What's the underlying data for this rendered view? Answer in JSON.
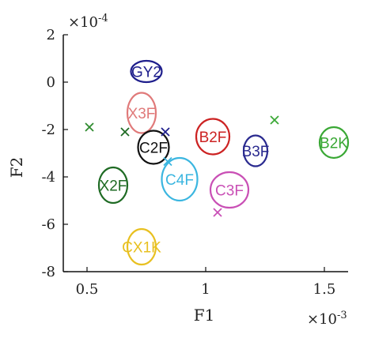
{
  "chart_data": {
    "type": "scatter",
    "title": "",
    "xlabel": "F1",
    "ylabel": "F2",
    "x_multiplier": "×10-3",
    "y_multiplier": "×10-4",
    "xlim": [
      0.4,
      1.6
    ],
    "ylim": [
      -8,
      2
    ],
    "x_ticks": [
      {
        "value": 0.5,
        "label": "0.5"
      },
      {
        "value": 1.0,
        "label": "1"
      },
      {
        "value": 1.5,
        "label": "1.5"
      }
    ],
    "y_ticks": [
      {
        "value": 2,
        "label": "2"
      },
      {
        "value": 0,
        "label": "0"
      },
      {
        "value": -2,
        "label": "-2"
      },
      {
        "value": -4,
        "label": "-4"
      },
      {
        "value": -6,
        "label": "-6"
      },
      {
        "value": -8,
        "label": "-8"
      }
    ],
    "grid": false,
    "clusters": [
      {
        "label": "GY2",
        "x": 0.75,
        "y": 0.45,
        "rx": 0.065,
        "ry": 0.45,
        "color": "#1e1e8c"
      },
      {
        "label": "X3F",
        "x": 0.73,
        "y": -1.3,
        "rx": 0.06,
        "ry": 0.85,
        "color": "#e07a7a"
      },
      {
        "label": "C2F",
        "x": 0.78,
        "y": -2.75,
        "rx": 0.065,
        "ry": 0.7,
        "color": "#111111"
      },
      {
        "label": "B2F",
        "x": 1.03,
        "y": -2.3,
        "rx": 0.07,
        "ry": 0.75,
        "color": "#cc2222"
      },
      {
        "label": "B3F",
        "x": 1.21,
        "y": -2.9,
        "rx": 0.05,
        "ry": 0.65,
        "color": "#2a2a8f"
      },
      {
        "label": "B2K",
        "x": 1.54,
        "y": -2.55,
        "rx": 0.06,
        "ry": 0.65,
        "color": "#3aa835"
      },
      {
        "label": "X2F",
        "x": 0.61,
        "y": -4.35,
        "rx": 0.06,
        "ry": 0.75,
        "color": "#1f6b24"
      },
      {
        "label": "C4F",
        "x": 0.89,
        "y": -4.1,
        "rx": 0.075,
        "ry": 0.9,
        "color": "#3bb6e0"
      },
      {
        "label": "C3F",
        "x": 1.1,
        "y": -4.55,
        "rx": 0.08,
        "ry": 0.75,
        "color": "#c94fb5"
      },
      {
        "label": "CX1K",
        "x": 0.73,
        "y": -6.95,
        "rx": 0.06,
        "ry": 0.75,
        "color": "#e8c020"
      }
    ],
    "markers": [
      {
        "x": 0.51,
        "y": -1.9,
        "color": "#2e8b2e"
      },
      {
        "x": 0.66,
        "y": -2.1,
        "color": "#1f6b24"
      },
      {
        "x": 0.83,
        "y": -2.1,
        "color": "#1e1e8c"
      },
      {
        "x": 0.84,
        "y": -3.35,
        "color": "#3bb6e0"
      },
      {
        "x": 1.05,
        "y": -5.5,
        "color": "#c94fb5"
      },
      {
        "x": 1.29,
        "y": -1.6,
        "color": "#3aa835"
      }
    ]
  }
}
